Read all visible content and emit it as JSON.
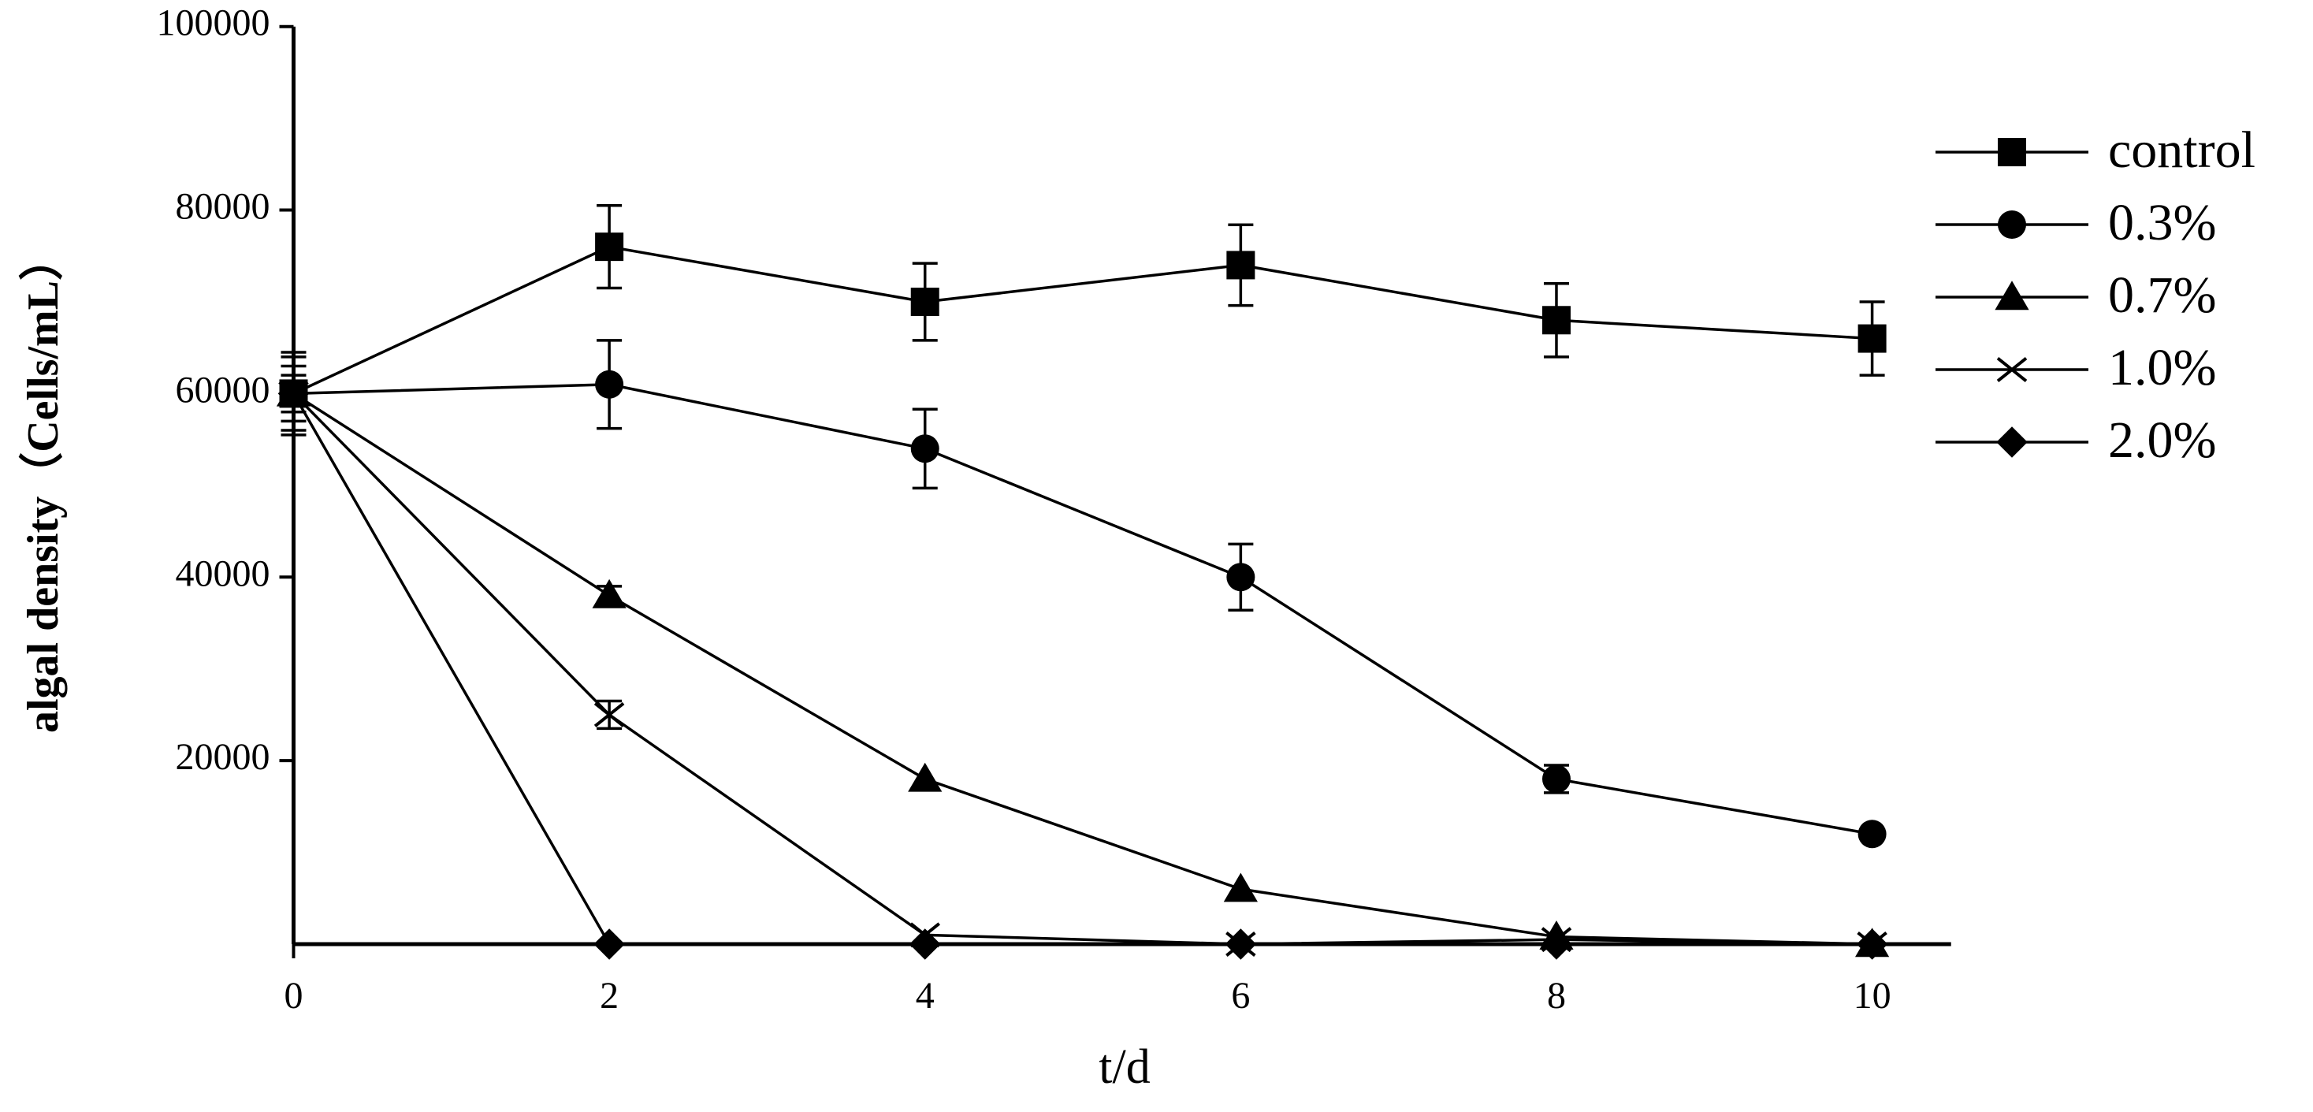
{
  "chart_data": {
    "type": "line",
    "x_label": "t/d",
    "y_label": "algal density（Cells/mL）",
    "x": [
      0,
      2,
      4,
      6,
      8,
      10
    ],
    "xlim": [
      0,
      10.5
    ],
    "xticks": [
      0,
      2,
      4,
      6,
      8,
      10
    ],
    "ylim": [
      0,
      100000
    ],
    "yticks": [
      20000,
      40000,
      60000,
      80000,
      100000
    ],
    "legend": "right",
    "series": [
      {
        "name": "control",
        "color": "#000000",
        "marker": "square",
        "values": [
          60000,
          76000,
          70000,
          74000,
          68000,
          66000
        ],
        "errors": [
          4500,
          4500,
          4200,
          4400,
          4000,
          4000
        ]
      },
      {
        "name": "0.3%",
        "color": "#000000",
        "marker": "circle",
        "values": [
          60000,
          61000,
          54000,
          40000,
          18000,
          12000
        ],
        "errors": [
          4000,
          4800,
          4300,
          3600,
          1500,
          500
        ]
      },
      {
        "name": "0.7%",
        "color": "#000000",
        "marker": "triangle",
        "values": [
          60000,
          38000,
          18000,
          6000,
          800,
          0
        ],
        "errors": [
          3000,
          1000,
          null,
          null,
          null,
          null
        ]
      },
      {
        "name": "1.0%",
        "color": "#000000",
        "marker": "cross",
        "values": [
          60000,
          25000,
          1000,
          0,
          500,
          0
        ],
        "errors": [
          2000,
          1500,
          null,
          null,
          null,
          null
        ]
      },
      {
        "name": "2.0%",
        "color": "#000000",
        "marker": "diamond",
        "values": [
          60000,
          0,
          0,
          0,
          0,
          0
        ],
        "errors": [
          null,
          null,
          null,
          null,
          null,
          null
        ]
      }
    ]
  }
}
